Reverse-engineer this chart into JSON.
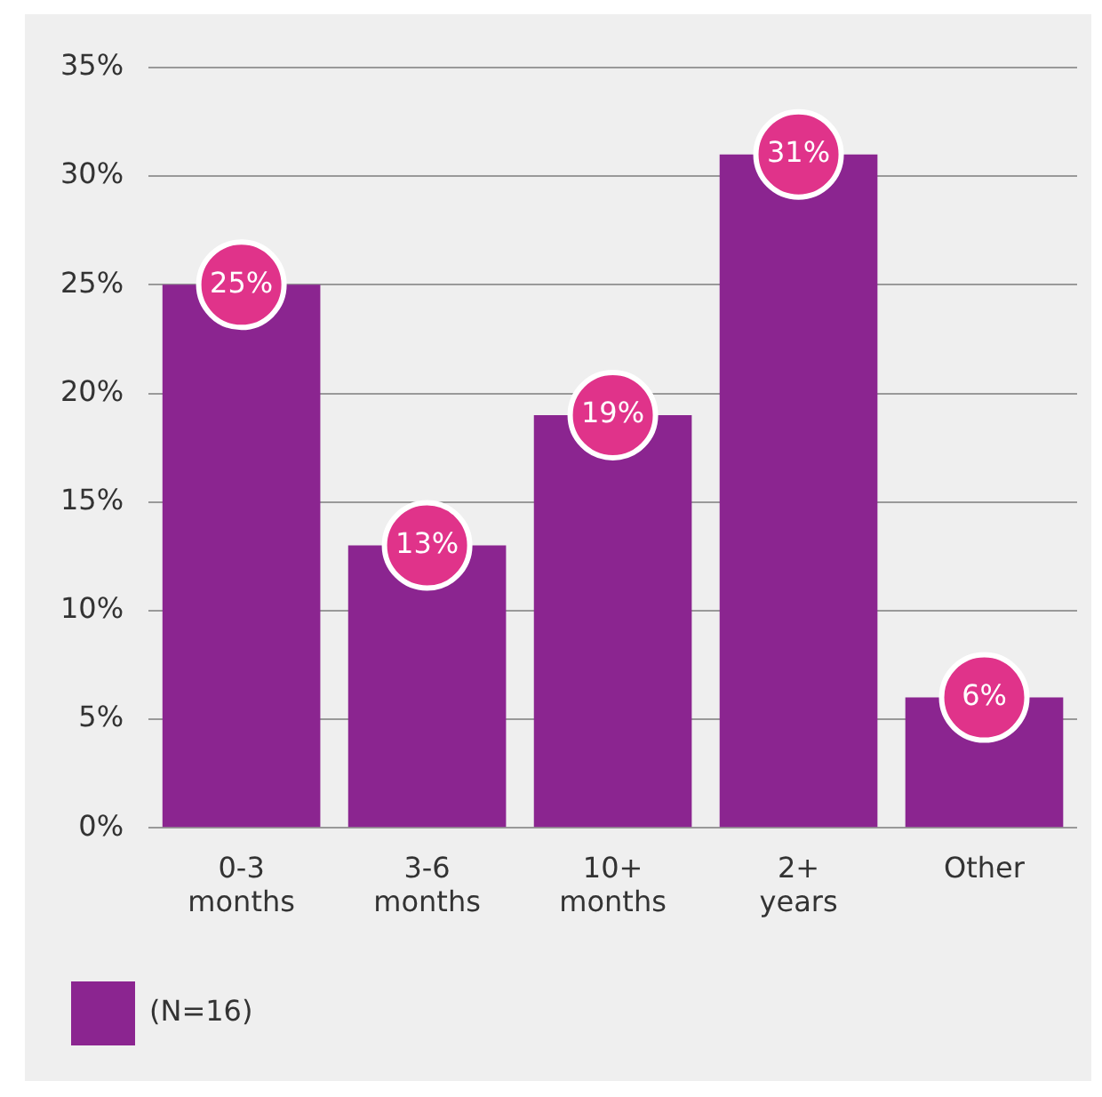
{
  "chart_data": {
    "type": "bar",
    "categories": [
      "0-3\nmonths",
      "3-6\nmonths",
      "10+\nmonths",
      "2+\nyears",
      "Other"
    ],
    "series": [
      {
        "name": "(N=16)",
        "color": "#8b2590",
        "values": [
          25,
          13,
          19,
          31,
          6
        ],
        "value_labels": [
          "25%",
          "13%",
          "19%",
          "31%",
          "6%"
        ]
      }
    ],
    "ylim": [
      0,
      35
    ],
    "yticks": [
      {
        "value": 0,
        "label": "0%"
      },
      {
        "value": 5,
        "label": "5%"
      },
      {
        "value": 10,
        "label": "10%"
      },
      {
        "value": 15,
        "label": "15%"
      },
      {
        "value": 20,
        "label": "20%"
      },
      {
        "value": 25,
        "label": "25%"
      },
      {
        "value": 30,
        "label": "30%"
      },
      {
        "value": 35,
        "label": "35%"
      }
    ],
    "grid": "y",
    "legend": "bottom left"
  }
}
